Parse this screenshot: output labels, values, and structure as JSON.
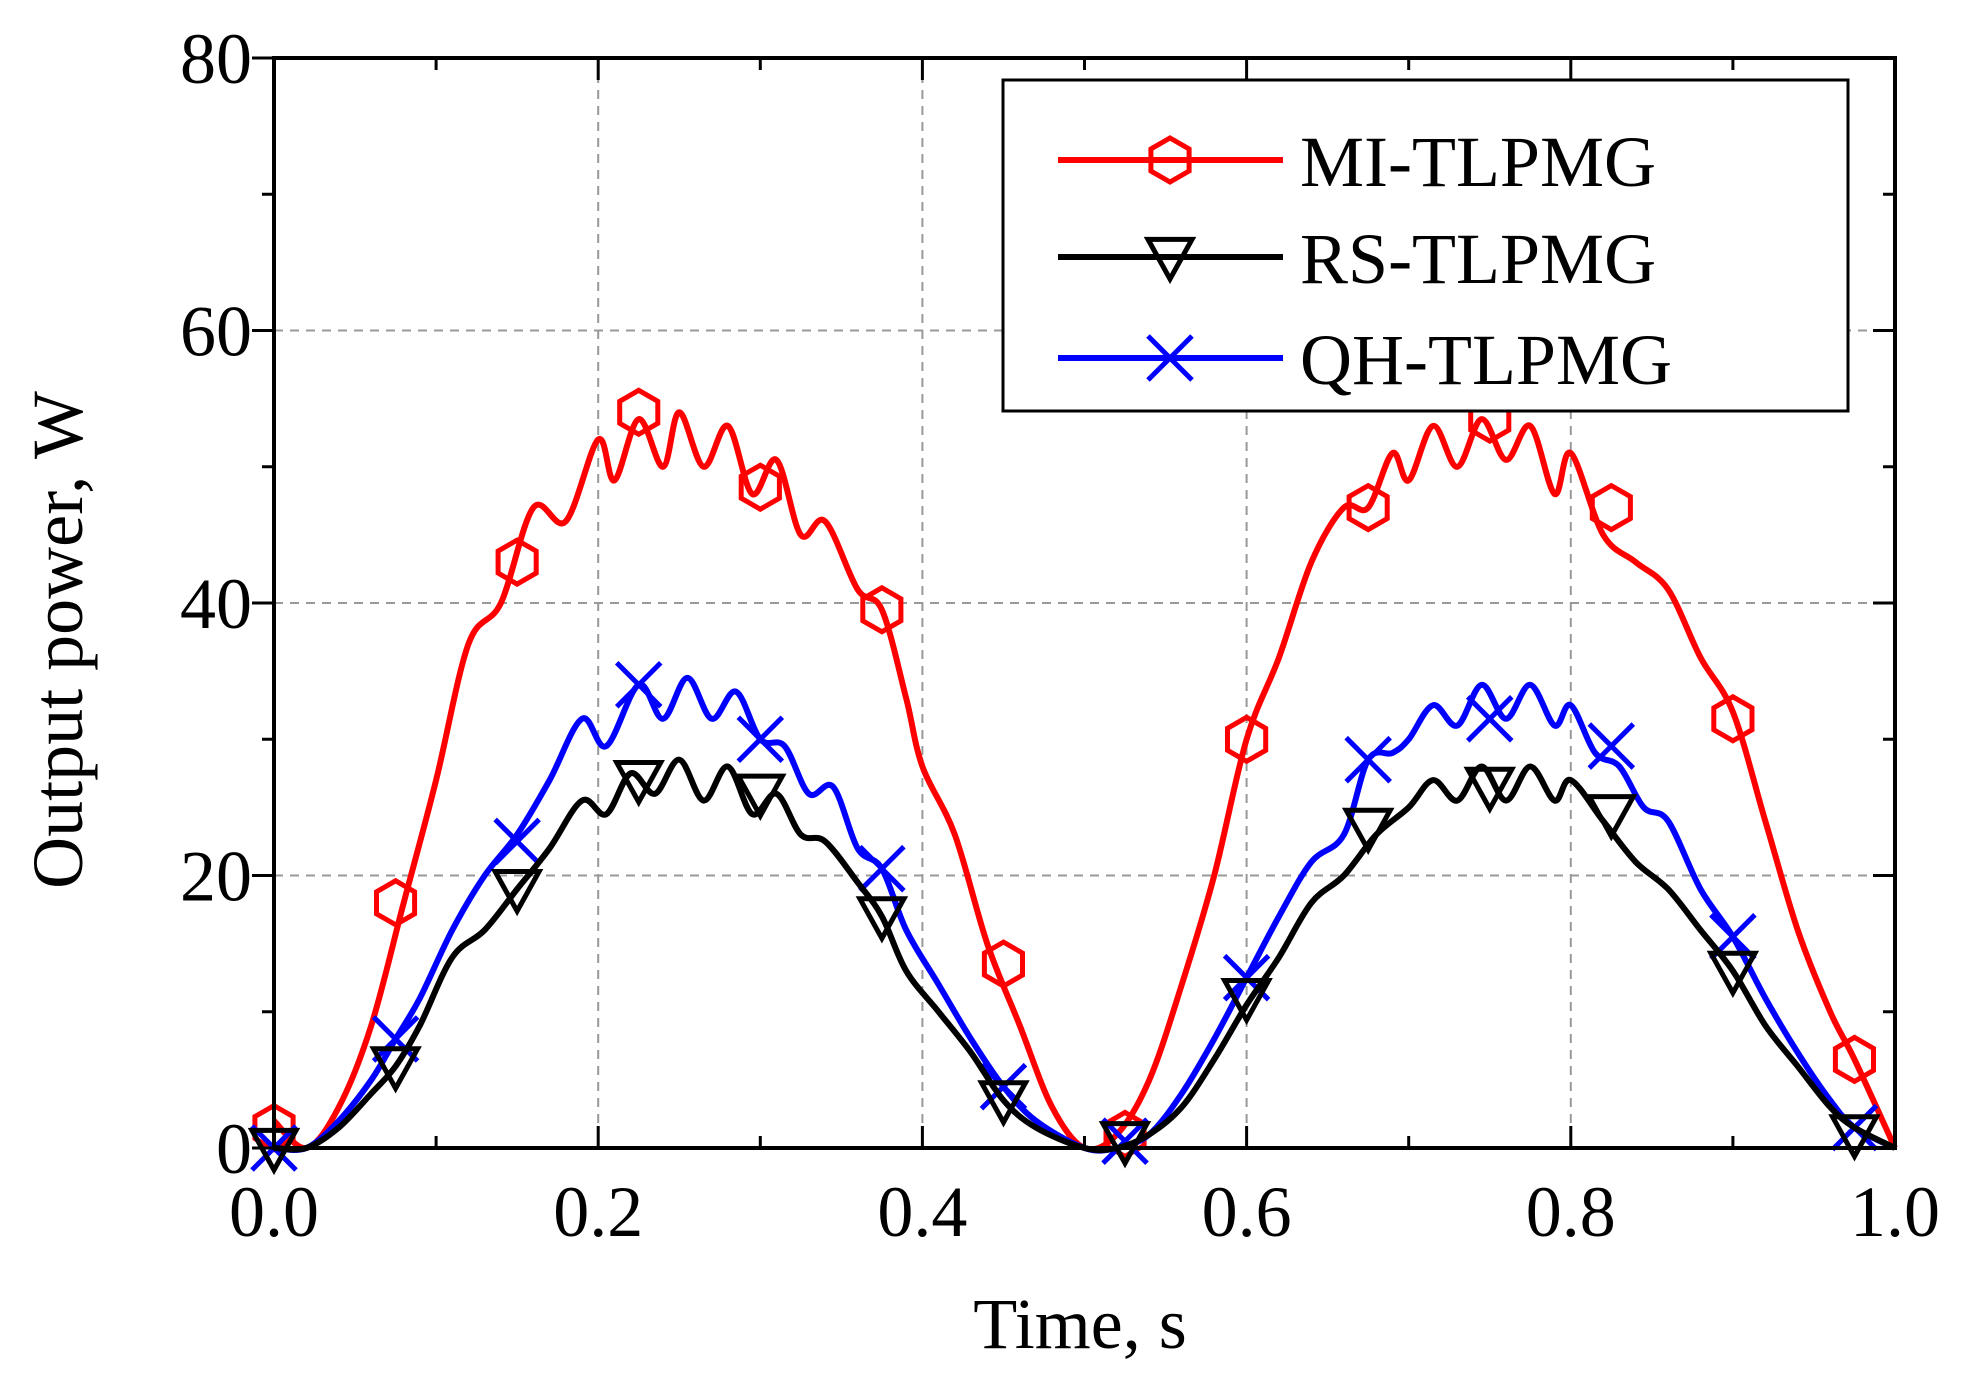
{
  "chart_data": {
    "type": "line",
    "title": "",
    "xlabel": "Time, s",
    "ylabel": "Output power, W",
    "xlim": [
      0.0,
      1.0
    ],
    "ylim": [
      0,
      80
    ],
    "x_ticks": [
      0.0,
      0.2,
      0.4,
      0.6,
      0.8,
      1.0
    ],
    "x_tick_labels": [
      "0.0",
      "0.2",
      "0.4",
      "0.6",
      "0.8",
      "1.0"
    ],
    "y_ticks": [
      0,
      20,
      40,
      60,
      80
    ],
    "y_tick_labels": [
      "0",
      "20",
      "40",
      "60",
      "80"
    ],
    "grid": true,
    "legend_position": "top-right",
    "series": [
      {
        "name": "MI-TLPMG",
        "color": "#ff0000",
        "marker": "hexagon",
        "points": [
          [
            0.0,
            2
          ],
          [
            0.02,
            0
          ],
          [
            0.04,
            3
          ],
          [
            0.06,
            9
          ],
          [
            0.08,
            18
          ],
          [
            0.1,
            27
          ],
          [
            0.12,
            37
          ],
          [
            0.14,
            40
          ],
          [
            0.16,
            47
          ],
          [
            0.18,
            46
          ],
          [
            0.2,
            52
          ],
          [
            0.21,
            49
          ],
          [
            0.225,
            53.5
          ],
          [
            0.24,
            50
          ],
          [
            0.25,
            54
          ],
          [
            0.265,
            50
          ],
          [
            0.28,
            53
          ],
          [
            0.295,
            48
          ],
          [
            0.31,
            50.5
          ],
          [
            0.325,
            45
          ],
          [
            0.34,
            46
          ],
          [
            0.36,
            41
          ],
          [
            0.375,
            39.5
          ],
          [
            0.39,
            33
          ],
          [
            0.4,
            28
          ],
          [
            0.42,
            23
          ],
          [
            0.44,
            15
          ],
          [
            0.46,
            9
          ],
          [
            0.48,
            3
          ],
          [
            0.5,
            0
          ],
          [
            0.52,
            1
          ],
          [
            0.54,
            5
          ],
          [
            0.56,
            12
          ],
          [
            0.58,
            20
          ],
          [
            0.6,
            30
          ],
          [
            0.62,
            36
          ],
          [
            0.64,
            43
          ],
          [
            0.66,
            47
          ],
          [
            0.675,
            47
          ],
          [
            0.69,
            51
          ],
          [
            0.7,
            49
          ],
          [
            0.715,
            53
          ],
          [
            0.73,
            50
          ],
          [
            0.745,
            53.5
          ],
          [
            0.76,
            50.5
          ],
          [
            0.775,
            53
          ],
          [
            0.79,
            48
          ],
          [
            0.8,
            51
          ],
          [
            0.82,
            45
          ],
          [
            0.84,
            43
          ],
          [
            0.86,
            41
          ],
          [
            0.88,
            36
          ],
          [
            0.9,
            32
          ],
          [
            0.92,
            24
          ],
          [
            0.94,
            16
          ],
          [
            0.96,
            10
          ],
          [
            0.975,
            6.5
          ],
          [
            1.0,
            0
          ]
        ],
        "marker_points": [
          [
            0.0,
            1.5
          ],
          [
            0.075,
            18
          ],
          [
            0.15,
            43
          ],
          [
            0.225,
            54
          ],
          [
            0.3,
            48.5
          ],
          [
            0.375,
            39.5
          ],
          [
            0.45,
            13.5
          ],
          [
            0.525,
            1
          ],
          [
            0.6,
            30
          ],
          [
            0.675,
            47
          ],
          [
            0.75,
            53.5
          ],
          [
            0.825,
            47
          ],
          [
            0.9,
            31.5
          ],
          [
            0.975,
            6.5
          ]
        ]
      },
      {
        "name": "RS-TLPMG",
        "color": "#000000",
        "marker": "triangle-down",
        "points": [
          [
            0.0,
            0
          ],
          [
            0.02,
            0
          ],
          [
            0.04,
            1.5
          ],
          [
            0.06,
            4
          ],
          [
            0.075,
            6
          ],
          [
            0.09,
            9
          ],
          [
            0.11,
            14
          ],
          [
            0.13,
            16
          ],
          [
            0.15,
            19
          ],
          [
            0.17,
            22
          ],
          [
            0.19,
            25.5
          ],
          [
            0.205,
            24.5
          ],
          [
            0.22,
            27.5
          ],
          [
            0.235,
            26
          ],
          [
            0.25,
            28.5
          ],
          [
            0.265,
            25.5
          ],
          [
            0.28,
            28
          ],
          [
            0.295,
            24.5
          ],
          [
            0.31,
            26
          ],
          [
            0.325,
            23
          ],
          [
            0.34,
            22.5
          ],
          [
            0.36,
            19.5
          ],
          [
            0.375,
            17
          ],
          [
            0.39,
            13
          ],
          [
            0.41,
            10
          ],
          [
            0.43,
            7
          ],
          [
            0.45,
            3.5
          ],
          [
            0.47,
            1.5
          ],
          [
            0.5,
            0
          ],
          [
            0.52,
            0
          ],
          [
            0.54,
            1
          ],
          [
            0.56,
            3
          ],
          [
            0.58,
            6.5
          ],
          [
            0.6,
            10.5
          ],
          [
            0.62,
            14
          ],
          [
            0.64,
            18
          ],
          [
            0.66,
            20
          ],
          [
            0.68,
            23
          ],
          [
            0.7,
            25
          ],
          [
            0.715,
            27
          ],
          [
            0.73,
            25.5
          ],
          [
            0.745,
            28
          ],
          [
            0.76,
            25.5
          ],
          [
            0.775,
            28
          ],
          [
            0.79,
            25.5
          ],
          [
            0.8,
            27
          ],
          [
            0.82,
            24
          ],
          [
            0.84,
            21
          ],
          [
            0.86,
            19
          ],
          [
            0.88,
            16
          ],
          [
            0.9,
            13
          ],
          [
            0.92,
            9
          ],
          [
            0.94,
            6
          ],
          [
            0.96,
            3
          ],
          [
            0.975,
            1.5
          ],
          [
            1.0,
            0
          ]
        ],
        "marker_points": [
          [
            0.0,
            0
          ],
          [
            0.075,
            6
          ],
          [
            0.15,
            19
          ],
          [
            0.225,
            27
          ],
          [
            0.3,
            26
          ],
          [
            0.375,
            17
          ],
          [
            0.45,
            3.5
          ],
          [
            0.525,
            0.5
          ],
          [
            0.6,
            11
          ],
          [
            0.675,
            23.5
          ],
          [
            0.75,
            26.5
          ],
          [
            0.825,
            24.5
          ],
          [
            0.9,
            13
          ],
          [
            0.975,
            1
          ]
        ]
      },
      {
        "name": "QH-TLPMG",
        "color": "#0000ff",
        "marker": "x",
        "points": [
          [
            0.0,
            0
          ],
          [
            0.02,
            0
          ],
          [
            0.04,
            2
          ],
          [
            0.06,
            5
          ],
          [
            0.075,
            8
          ],
          [
            0.09,
            11
          ],
          [
            0.11,
            16
          ],
          [
            0.13,
            20
          ],
          [
            0.15,
            23
          ],
          [
            0.17,
            27
          ],
          [
            0.19,
            31.5
          ],
          [
            0.205,
            29.5
          ],
          [
            0.225,
            34
          ],
          [
            0.24,
            31.5
          ],
          [
            0.255,
            34.5
          ],
          [
            0.27,
            31.5
          ],
          [
            0.285,
            33.5
          ],
          [
            0.3,
            30
          ],
          [
            0.315,
            29.5
          ],
          [
            0.33,
            26
          ],
          [
            0.345,
            26.5
          ],
          [
            0.36,
            22
          ],
          [
            0.375,
            20.5
          ],
          [
            0.39,
            16
          ],
          [
            0.41,
            12
          ],
          [
            0.43,
            8
          ],
          [
            0.45,
            4.5
          ],
          [
            0.47,
            2
          ],
          [
            0.5,
            0
          ],
          [
            0.52,
            0
          ],
          [
            0.54,
            1
          ],
          [
            0.56,
            4
          ],
          [
            0.58,
            8
          ],
          [
            0.6,
            12.5
          ],
          [
            0.62,
            17
          ],
          [
            0.64,
            21
          ],
          [
            0.66,
            23
          ],
          [
            0.675,
            28.5
          ],
          [
            0.69,
            29
          ],
          [
            0.7,
            30
          ],
          [
            0.715,
            32.5
          ],
          [
            0.73,
            31
          ],
          [
            0.745,
            34
          ],
          [
            0.76,
            31.5
          ],
          [
            0.775,
            34
          ],
          [
            0.79,
            31
          ],
          [
            0.8,
            32.5
          ],
          [
            0.815,
            29
          ],
          [
            0.83,
            28
          ],
          [
            0.845,
            25
          ],
          [
            0.86,
            24
          ],
          [
            0.88,
            19
          ],
          [
            0.9,
            15.5
          ],
          [
            0.92,
            11
          ],
          [
            0.94,
            7
          ],
          [
            0.96,
            3.5
          ],
          [
            0.975,
            1.5
          ],
          [
            1.0,
            0
          ]
        ],
        "marker_points": [
          [
            0.0,
            0
          ],
          [
            0.075,
            8
          ],
          [
            0.15,
            22.5
          ],
          [
            0.225,
            34
          ],
          [
            0.3,
            30
          ],
          [
            0.375,
            20.5
          ],
          [
            0.45,
            4.5
          ],
          [
            0.525,
            0.5
          ],
          [
            0.6,
            12.5
          ],
          [
            0.675,
            28.5
          ],
          [
            0.75,
            31.5
          ],
          [
            0.825,
            29.5
          ],
          [
            0.9,
            15.5
          ],
          [
            0.975,
            1.5
          ]
        ]
      }
    ]
  }
}
